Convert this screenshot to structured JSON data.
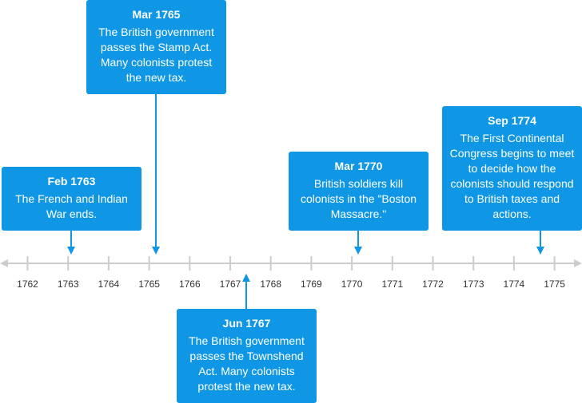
{
  "timeline": {
    "years": [
      "1762",
      "1763",
      "1764",
      "1765",
      "1766",
      "1767",
      "1768",
      "1769",
      "1770",
      "1771",
      "1772",
      "1773",
      "1774",
      "1775"
    ],
    "colors": {
      "axis": "#cccccc",
      "card": "#0f97e6",
      "text": "#ffffff",
      "tick_label": "#333333"
    },
    "events": [
      {
        "date": "Mar 1765",
        "description": "The British government passes the Stamp Act. Many colonists protest the new tax."
      },
      {
        "date": "Feb 1763",
        "description": "The French and Indian War ends."
      },
      {
        "date": "Mar 1770",
        "description": "British soldiers kill colonists in the \"Boston Massacre.\""
      },
      {
        "date": "Sep 1774",
        "description": "The First Continental Congress begins to meet to decide how the colonists should respond to British taxes and actions."
      },
      {
        "date": "Jun 1767",
        "description": "The British government passes the Townshend Act. Many colonists protest the new tax."
      }
    ]
  }
}
